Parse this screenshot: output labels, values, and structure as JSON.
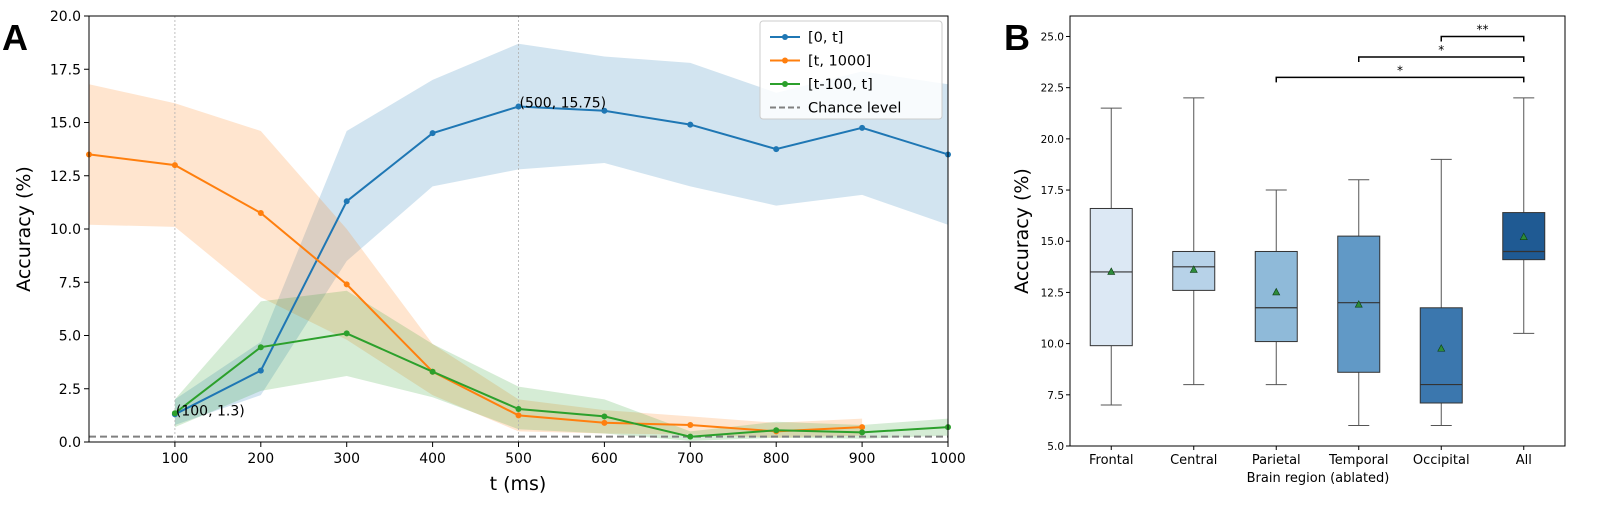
{
  "chart_data": [
    {
      "panel": "A",
      "type": "line",
      "title": "",
      "xlabel": "t (ms)",
      "ylabel": "Accuracy (%)",
      "xlim": [
        0,
        1000
      ],
      "ylim": [
        0,
        20
      ],
      "x_ticks": [
        "100",
        "200",
        "300",
        "400",
        "500",
        "600",
        "700",
        "800",
        "900",
        "1000"
      ],
      "y_ticks": [
        "0.0",
        "2.5",
        "5.0",
        "7.5",
        "10.0",
        "12.5",
        "15.0",
        "17.5",
        "20.0"
      ],
      "grid": false,
      "legend_placement": "top-right",
      "vertical_reference_lines": [
        100,
        500
      ],
      "series": [
        {
          "name": "[0, t]",
          "color": "#1f77b4",
          "x": [
            100,
            200,
            300,
            400,
            500,
            600,
            700,
            800,
            900,
            1000
          ],
          "values": [
            1.3,
            3.35,
            11.3,
            14.5,
            15.75,
            15.55,
            14.9,
            13.75,
            14.75,
            13.5
          ],
          "band_lower": [
            0.8,
            2.2,
            8.5,
            12.0,
            12.8,
            13.1,
            12.0,
            11.1,
            11.6,
            10.2
          ],
          "band_upper": [
            2.0,
            4.7,
            14.6,
            17.0,
            18.7,
            18.1,
            17.8,
            16.4,
            17.4,
            16.8
          ]
        },
        {
          "name": "[t, 1000]",
          "color": "#ff7f0e",
          "x": [
            0,
            100,
            200,
            300,
            400,
            500,
            600,
            700,
            800,
            900
          ],
          "values": [
            13.5,
            13.0,
            10.75,
            7.4,
            3.3,
            1.25,
            0.9,
            0.8,
            0.5,
            0.7
          ],
          "band_lower": [
            10.2,
            10.1,
            6.8,
            4.8,
            2.2,
            0.5,
            0.4,
            0.35,
            0.2,
            0.3
          ],
          "band_upper": [
            16.8,
            15.9,
            14.6,
            10.0,
            4.6,
            2.0,
            1.5,
            1.2,
            0.9,
            1.1
          ]
        },
        {
          "name": "[t-100, t]",
          "color": "#2ca02c",
          "x": [
            100,
            200,
            300,
            400,
            500,
            600,
            700,
            800,
            900,
            1000
          ],
          "values": [
            1.35,
            4.45,
            5.1,
            3.3,
            1.55,
            1.2,
            0.25,
            0.55,
            0.45,
            0.7
          ],
          "band_lower": [
            0.7,
            2.4,
            3.1,
            2.1,
            0.6,
            0.4,
            0.05,
            0.2,
            0.15,
            0.3
          ],
          "band_upper": [
            2.0,
            6.6,
            7.1,
            4.6,
            2.6,
            2.0,
            0.5,
            0.95,
            0.8,
            1.1
          ]
        }
      ],
      "chance_level": {
        "name": "Chance level",
        "value": 0.25,
        "color": "#808080"
      },
      "annotations": [
        {
          "text": "(500, 15.75)",
          "x": 500,
          "y": 15.75
        },
        {
          "text": "(100, 1.3)",
          "x": 100,
          "y": 1.3
        }
      ]
    },
    {
      "panel": "B",
      "type": "box",
      "title": "",
      "xlabel": "Brain region (ablated)",
      "ylabel": "Accuracy (%)",
      "ylim": [
        5,
        26
      ],
      "y_ticks": [
        "5.0",
        "7.5",
        "10.0",
        "12.5",
        "15.0",
        "17.5",
        "20.0",
        "22.5",
        "25.0"
      ],
      "categories": [
        "Frontal",
        "Central",
        "Parietal",
        "Temporal",
        "Occipital",
        "All"
      ],
      "boxes": [
        {
          "category": "Frontal",
          "whisker_low": 7.0,
          "q1": 9.9,
          "median": 13.5,
          "q3": 16.6,
          "whisker_high": 21.5,
          "mean": 13.5,
          "color": "#dce8f4"
        },
        {
          "category": "Central",
          "whisker_low": 8.0,
          "q1": 12.6,
          "median": 13.75,
          "q3": 14.5,
          "whisker_high": 22.0,
          "mean": 13.6,
          "color": "#b7d2e8"
        },
        {
          "category": "Parietal",
          "whisker_low": 8.0,
          "q1": 10.1,
          "median": 11.75,
          "q3": 14.5,
          "whisker_high": 17.5,
          "mean": 12.5,
          "color": "#8fbad9"
        },
        {
          "category": "Temporal",
          "whisker_low": 6.0,
          "q1": 8.6,
          "median": 12.0,
          "q3": 15.25,
          "whisker_high": 18.0,
          "mean": 11.9,
          "color": "#6199c6"
        },
        {
          "category": "Occipital",
          "whisker_low": 6.0,
          "q1": 7.1,
          "median": 8.0,
          "q3": 11.75,
          "whisker_high": 19.0,
          "mean": 9.75,
          "color": "#3b77ae"
        },
        {
          "category": "All",
          "whisker_low": 10.5,
          "q1": 14.1,
          "median": 14.5,
          "q3": 16.4,
          "whisker_high": 22.0,
          "mean": 15.2,
          "color": "#1f5a93"
        }
      ],
      "mean_marker_color": "#2e8b3a",
      "significance_brackets": [
        {
          "from": "Occipital",
          "to": "All",
          "y": 25.0,
          "label": "**"
        },
        {
          "from": "Temporal",
          "to": "All",
          "y": 24.0,
          "label": "*"
        },
        {
          "from": "Parietal",
          "to": "All",
          "y": 23.0,
          "label": "*"
        }
      ]
    }
  ],
  "panel_labels": {
    "a": "A",
    "b": "B"
  }
}
